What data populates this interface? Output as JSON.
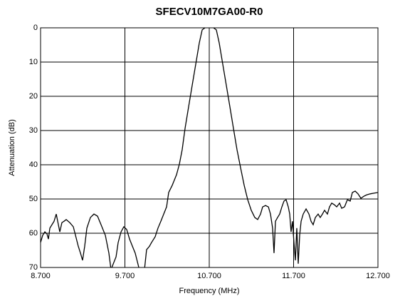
{
  "chart_data": {
    "type": "line",
    "title": "SFECV10M7GA00-R0",
    "x_label": "Frequency (MHz)",
    "y_label": "Attenuation (dB)",
    "x": [
      8.7,
      8.725,
      8.751,
      8.776,
      8.793,
      8.81,
      8.835,
      8.86,
      8.886,
      8.903,
      8.928,
      8.953,
      8.978,
      9.004,
      9.046,
      9.088,
      9.114,
      9.147,
      9.173,
      9.198,
      9.223,
      9.249,
      9.291,
      9.333,
      9.375,
      9.417,
      9.468,
      9.51,
      9.535,
      9.595,
      9.62,
      9.654,
      9.687,
      9.721,
      9.755,
      9.789,
      9.822,
      9.865,
      9.89,
      9.932,
      9.957,
      9.991,
      10.016,
      10.059,
      10.092,
      10.126,
      10.16,
      10.194,
      10.219,
      10.261,
      10.312,
      10.346,
      10.379,
      10.413,
      10.455,
      10.497,
      10.54,
      10.582,
      10.616,
      10.649,
      10.7,
      10.751,
      10.784,
      10.818,
      10.86,
      10.903,
      10.945,
      10.987,
      11.029,
      11.071,
      11.114,
      11.156,
      11.198,
      11.24,
      11.274,
      11.308,
      11.333,
      11.367,
      11.401,
      11.426,
      11.451,
      11.468,
      11.485,
      11.51,
      11.535,
      11.561,
      11.586,
      11.611,
      11.637,
      11.654,
      11.67,
      11.687,
      11.704,
      11.721,
      11.738,
      11.755,
      11.772,
      11.789,
      11.814,
      11.848,
      11.882,
      11.907,
      11.932,
      11.958,
      11.991,
      12.016,
      12.042,
      12.067,
      12.101,
      12.126,
      12.152,
      12.185,
      12.211,
      12.245,
      12.27,
      12.304,
      12.338,
      12.371,
      12.397,
      12.43,
      12.464,
      12.498,
      12.532,
      12.565,
      12.608,
      12.65,
      12.7
    ],
    "values": [
      62.7,
      60.6,
      59.6,
      60.2,
      61.7,
      58.5,
      57.5,
      56.5,
      54.4,
      56.5,
      59.6,
      56.9,
      56.5,
      56.0,
      56.9,
      58.1,
      60.6,
      63.8,
      65.8,
      67.9,
      63.8,
      58.5,
      55.4,
      54.4,
      55.0,
      57.5,
      60.6,
      65.8,
      70.6,
      66.9,
      62.7,
      59.6,
      58.1,
      58.9,
      61.7,
      63.8,
      65.8,
      70.0,
      70.6,
      70.6,
      64.8,
      63.8,
      62.7,
      61.0,
      58.5,
      56.5,
      54.4,
      52.3,
      48.1,
      46.0,
      42.9,
      39.8,
      35.6,
      29.4,
      23.1,
      16.9,
      10.6,
      4.4,
      0.6,
      0,
      -0.2,
      0,
      0.6,
      4.4,
      10.6,
      16.9,
      23.1,
      29.4,
      35.6,
      40.8,
      46.0,
      50.2,
      53.3,
      55.4,
      56.0,
      54.4,
      52.3,
      51.9,
      52.3,
      54.4,
      58.5,
      65.8,
      56.5,
      55.4,
      54.4,
      52.3,
      50.6,
      50.2,
      52.3,
      54.4,
      59.6,
      56.5,
      62.7,
      67.9,
      58.5,
      68.9,
      60.6,
      56.5,
      54.4,
      52.9,
      54.4,
      56.5,
      57.5,
      55.4,
      54.4,
      55.4,
      54.4,
      53.3,
      54.4,
      52.3,
      51.2,
      51.7,
      52.3,
      51.2,
      52.7,
      52.3,
      50.2,
      50.6,
      48.1,
      47.7,
      48.5,
      49.8,
      49.2,
      48.8,
      48.5,
      48.3,
      48.1
    ],
    "color": "#000000",
    "xlim": [
      8.7,
      12.7
    ],
    "xticks": [
      {
        "value": 8.7,
        "label": "8.700"
      },
      {
        "value": 9.7,
        "label": "9.700"
      },
      {
        "value": 10.7,
        "label": "10.700"
      },
      {
        "value": 11.7,
        "label": "11.700"
      },
      {
        "value": 12.7,
        "label": "12.700"
      }
    ],
    "ylim": [
      70,
      0
    ],
    "yticks": [
      0,
      10,
      20,
      30,
      40,
      50,
      60,
      70
    ],
    "grid": true
  }
}
